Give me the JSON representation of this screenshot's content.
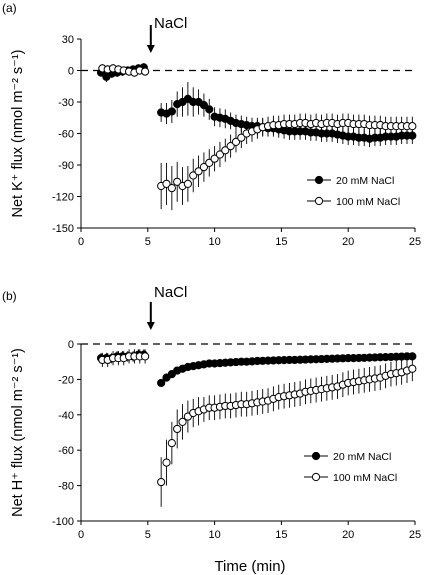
{
  "chart_data": [
    {
      "type": "scatter",
      "panel_label": "(a)",
      "annotation": "NaCl",
      "annotation_x": 5,
      "ylabel": "Net K⁺ flux (nmol m⁻² s⁻¹)",
      "xlabel": "",
      "xlim": [
        0,
        25
      ],
      "ylim": [
        -150,
        30
      ],
      "xticks": [
        0,
        5,
        10,
        15,
        20,
        25
      ],
      "yticks": [
        30,
        0,
        -30,
        -60,
        -90,
        -120,
        -150
      ],
      "zero_line": "dashed",
      "legend": "center-right",
      "series": [
        {
          "name": "20 mM NaCl",
          "marker": "filled",
          "x": [
            1.5,
            1.9,
            2.3,
            2.7,
            3.1,
            3.5,
            3.9,
            4.3,
            4.7,
            6.0,
            6.4,
            6.8,
            7.2,
            7.6,
            8.0,
            8.4,
            8.8,
            9.2,
            9.6,
            10.0,
            10.4,
            10.8,
            11.2,
            11.6,
            12.0,
            12.4,
            12.8,
            13.2,
            13.6,
            14.0,
            14.4,
            14.8,
            15.2,
            15.6,
            16.0,
            16.4,
            16.8,
            17.2,
            17.6,
            18.0,
            18.4,
            18.8,
            19.2,
            19.6,
            20.0,
            20.4,
            20.8,
            21.2,
            21.6,
            22.0,
            22.4,
            22.8,
            23.2,
            23.6,
            24.0,
            24.4,
            24.8
          ],
          "y": [
            -2,
            -6,
            -3,
            -2,
            -1,
            0,
            1,
            2,
            3,
            -40,
            -41,
            -39,
            -32,
            -30,
            -27,
            -30,
            -30,
            -33,
            -37,
            -44,
            -45,
            -46,
            -48,
            -50,
            -51,
            -52,
            -53,
            -53,
            -54,
            -55,
            -55,
            -56,
            -57,
            -58,
            -58,
            -58,
            -58,
            -59,
            -59,
            -60,
            -60,
            -60,
            -61,
            -62,
            -63,
            -63,
            -64,
            -64,
            -65,
            -64,
            -64,
            -63,
            -63,
            -63,
            -62,
            -62,
            -62
          ],
          "err": [
            3,
            5,
            4,
            4,
            4,
            4,
            4,
            4,
            4,
            9,
            10,
            11,
            12,
            14,
            16,
            14,
            12,
            11,
            10,
            9,
            9,
            9,
            8,
            8,
            8,
            8,
            8,
            8,
            8,
            8,
            8,
            8,
            8,
            8,
            8,
            8,
            8,
            8,
            8,
            8,
            8,
            8,
            8,
            8,
            8,
            8,
            8,
            8,
            8,
            8,
            8,
            8,
            8,
            8,
            8,
            8,
            8
          ]
        },
        {
          "name": "100 mM NaCl",
          "marker": "open",
          "x": [
            1.6,
            2.0,
            2.4,
            2.8,
            3.2,
            3.6,
            4.0,
            4.4,
            4.8,
            6.0,
            6.4,
            6.8,
            7.2,
            7.6,
            8.0,
            8.4,
            8.8,
            9.2,
            9.6,
            10.0,
            10.4,
            10.8,
            11.2,
            11.6,
            12.0,
            12.4,
            12.8,
            13.2,
            13.6,
            14.0,
            14.4,
            14.8,
            15.2,
            15.6,
            16.0,
            16.4,
            16.8,
            17.2,
            17.6,
            18.0,
            18.4,
            18.8,
            19.2,
            19.6,
            20.0,
            20.4,
            20.8,
            21.2,
            21.6,
            22.0,
            22.4,
            22.8,
            23.2,
            23.6,
            24.0,
            24.4,
            24.8
          ],
          "y": [
            2,
            1,
            2,
            1,
            0,
            -1,
            -2,
            0,
            -1,
            -110,
            -108,
            -112,
            -106,
            -110,
            -108,
            -100,
            -96,
            -92,
            -88,
            -84,
            -80,
            -76,
            -72,
            -68,
            -64,
            -60,
            -58,
            -56,
            -54,
            -53,
            -52,
            -52,
            -51,
            -51,
            -51,
            -50,
            -50,
            -51,
            -50,
            -51,
            -50,
            -50,
            -51,
            -50,
            -50,
            -51,
            -51,
            -51,
            -52,
            -52,
            -52,
            -53,
            -53,
            -53,
            -53,
            -53,
            -53
          ],
          "err": [
            4,
            4,
            4,
            4,
            4,
            4,
            4,
            4,
            4,
            22,
            20,
            21,
            19,
            18,
            17,
            16,
            15,
            14,
            13,
            12,
            12,
            11,
            11,
            10,
            10,
            10,
            10,
            9,
            9,
            9,
            9,
            9,
            9,
            9,
            9,
            9,
            9,
            9,
            9,
            9,
            9,
            9,
            9,
            9,
            9,
            9,
            9,
            9,
            9,
            9,
            9,
            9,
            9,
            9,
            9,
            9,
            9
          ]
        }
      ]
    },
    {
      "type": "scatter",
      "panel_label": "(b)",
      "annotation": "NaCl",
      "annotation_x": 5,
      "ylabel": "Net H⁺ flux (nmol m⁻² s⁻¹)",
      "xlabel": "Time (min)",
      "xlim": [
        0,
        25
      ],
      "ylim": [
        -100,
        0
      ],
      "xticks": [
        0,
        5,
        10,
        15,
        20,
        25
      ],
      "yticks": [
        0,
        -20,
        -40,
        -60,
        -80,
        -100
      ],
      "zero_line": "dashed",
      "legend": "bottom-right",
      "series": [
        {
          "name": "20 mM NaCl",
          "marker": "filled",
          "x": [
            1.5,
            1.9,
            2.3,
            2.7,
            3.1,
            3.5,
            3.9,
            4.3,
            4.7,
            6.0,
            6.4,
            6.8,
            7.2,
            7.6,
            8.0,
            8.4,
            8.8,
            9.2,
            9.6,
            10.0,
            10.4,
            10.8,
            11.2,
            11.6,
            12.0,
            12.4,
            12.8,
            13.2,
            13.6,
            14.0,
            14.4,
            14.8,
            15.2,
            15.6,
            16.0,
            16.4,
            16.8,
            17.2,
            17.6,
            18.0,
            18.4,
            18.8,
            19.2,
            19.6,
            20.0,
            20.4,
            20.8,
            21.2,
            21.6,
            22.0,
            22.4,
            22.8,
            23.2,
            23.6,
            24.0,
            24.4,
            24.8
          ],
          "y": [
            -8,
            -8,
            -8,
            -7,
            -7,
            -7,
            -7,
            -6,
            -6,
            -22,
            -19,
            -17,
            -15,
            -14,
            -13,
            -12.5,
            -12,
            -11.5,
            -11,
            -11,
            -10.8,
            -10.6,
            -10.4,
            -10.2,
            -10,
            -10,
            -9.8,
            -9.6,
            -9.5,
            -9.4,
            -9.3,
            -9.2,
            -9.1,
            -9,
            -9,
            -8.9,
            -8.8,
            -8.7,
            -8.6,
            -8.5,
            -8.4,
            -8.3,
            -8.2,
            -8.1,
            -8,
            -8,
            -7.9,
            -7.8,
            -7.7,
            -7.6,
            -7.5,
            -7.4,
            -7.3,
            -7.2,
            -7.1,
            -7,
            -7
          ],
          "err": [
            3,
            3,
            3,
            3,
            3,
            3,
            3,
            3,
            3,
            2,
            2,
            2,
            2,
            2,
            2,
            2,
            2,
            2,
            2,
            2,
            2,
            2,
            2,
            2,
            2,
            2,
            2,
            2,
            2,
            2,
            2,
            2,
            2,
            2,
            2,
            2,
            2,
            2,
            2,
            2,
            2,
            2,
            2,
            2,
            2,
            2,
            2,
            2,
            2,
            2,
            2,
            2,
            2,
            2,
            2,
            2,
            2
          ]
        },
        {
          "name": "100 mM NaCl",
          "marker": "open",
          "x": [
            1.6,
            2.0,
            2.4,
            2.8,
            3.2,
            3.6,
            4.0,
            4.4,
            4.8,
            6.0,
            6.4,
            6.8,
            7.2,
            7.6,
            8.0,
            8.4,
            8.8,
            9.2,
            9.6,
            10.0,
            10.4,
            10.8,
            11.2,
            11.6,
            12.0,
            12.4,
            12.8,
            13.2,
            13.6,
            14.0,
            14.4,
            14.8,
            15.2,
            15.6,
            16.0,
            16.4,
            16.8,
            17.2,
            17.6,
            18.0,
            18.4,
            18.8,
            19.2,
            19.6,
            20.0,
            20.4,
            20.8,
            21.2,
            21.6,
            22.0,
            22.4,
            22.8,
            23.2,
            23.6,
            24.0,
            24.4,
            24.8
          ],
          "y": [
            -9,
            -9,
            -8,
            -8,
            -8,
            -7,
            -7,
            -7,
            -7,
            -78,
            -67,
            -56,
            -48,
            -44,
            -41,
            -39,
            -38,
            -37,
            -36,
            -36,
            -35.5,
            -35,
            -35,
            -34.5,
            -34,
            -34,
            -33.5,
            -33,
            -32.5,
            -32,
            -31,
            -30,
            -29.5,
            -29,
            -28.5,
            -28,
            -27,
            -26.5,
            -26,
            -25.5,
            -25,
            -24.5,
            -24,
            -23,
            -22,
            -21.5,
            -21,
            -20.5,
            -20,
            -19.5,
            -19,
            -18,
            -17,
            -16.5,
            -16,
            -15,
            -14
          ],
          "err": [
            4,
            4,
            4,
            4,
            4,
            4,
            4,
            4,
            4,
            14,
            13,
            12,
            11,
            10,
            9,
            8,
            8,
            7,
            7,
            7,
            7,
            7,
            7,
            7,
            7,
            7,
            7,
            7,
            7,
            7,
            7,
            7,
            7,
            7,
            7,
            7,
            7,
            7,
            7,
            7,
            7,
            7,
            7,
            7,
            7,
            7,
            7,
            7,
            7,
            7,
            7,
            7,
            7,
            7,
            7,
            7,
            7
          ]
        }
      ]
    }
  ]
}
